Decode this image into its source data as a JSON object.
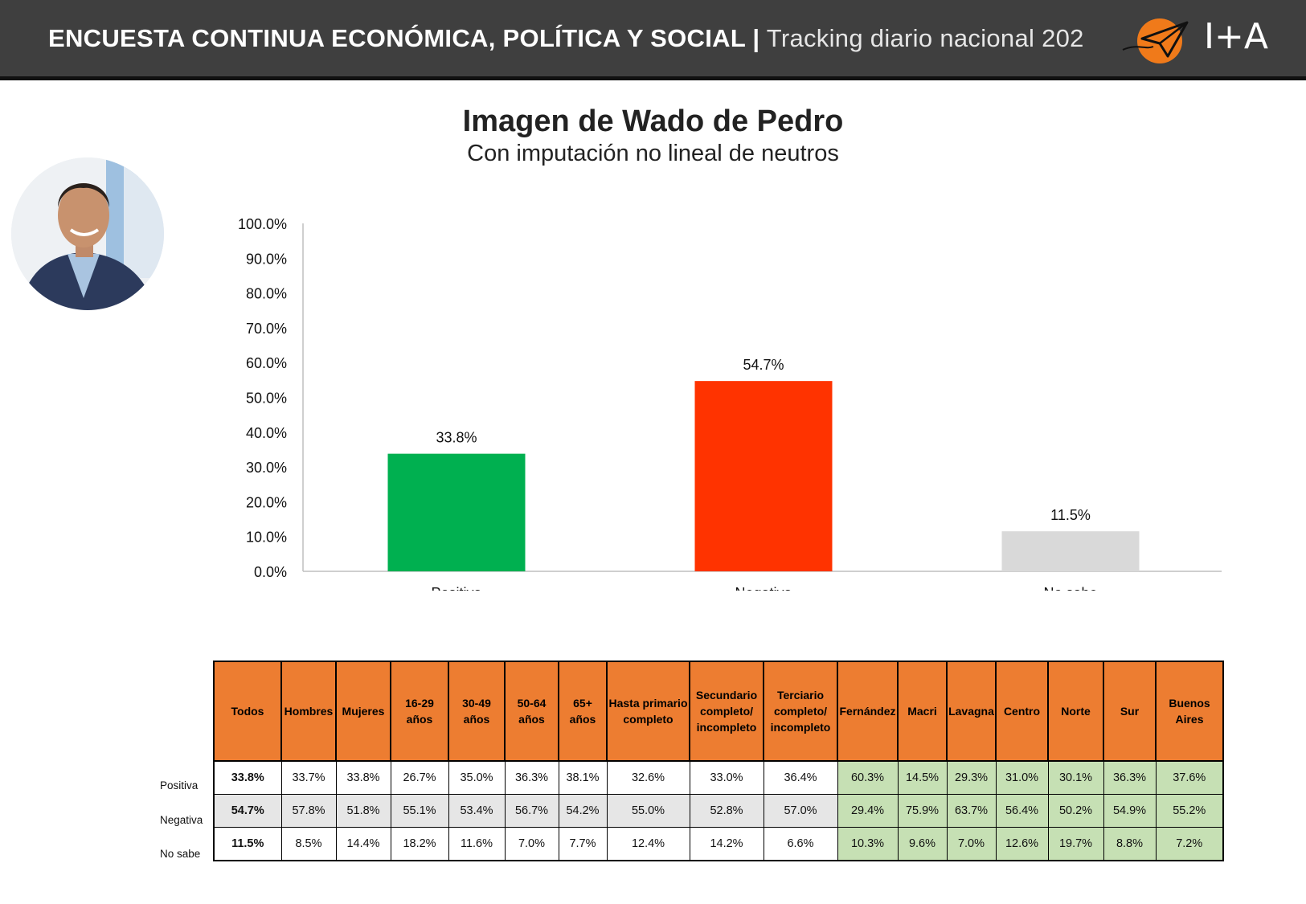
{
  "header": {
    "title_bold": "ENCUESTA CONTINUA ECONÓMICA, POLÍTICA Y SOCIAL |",
    "title_light": "Tracking diario nacional 202",
    "brand": "I+A",
    "logo_icon": "paper-plane-sun-logo"
  },
  "colors": {
    "header_bg": "#3f3f3f",
    "positiva": "#00b050",
    "negativa": "#ff3300",
    "no_sabe": "#d9d9d9",
    "table_header": "#ed7d31",
    "table_green": "#c6e0b4",
    "table_gray": "#e6e6e6"
  },
  "chart_data": {
    "type": "bar",
    "title": "Imagen de Wado de Pedro",
    "subtitle": "Con imputación no lineal de neutros",
    "categories": [
      "Positiva",
      "Negativa",
      "No sabe"
    ],
    "values": [
      33.8,
      54.7,
      11.5
    ],
    "value_labels": [
      "33.8%",
      "54.7%",
      "11.5%"
    ],
    "ylim": [
      0,
      100
    ],
    "yticks": [
      "0.0%",
      "10.0%",
      "20.0%",
      "30.0%",
      "40.0%",
      "50.0%",
      "60.0%",
      "70.0%",
      "80.0%",
      "90.0%",
      "100.0%"
    ],
    "grid": false,
    "legend": "none"
  },
  "table": {
    "headers": [
      "Todos",
      "Hombres",
      "Mujeres",
      "16-29 años",
      "30-49 años",
      "50-64 años",
      "65+ años",
      "Hasta primario completo",
      "Secundario completo/ incompleto",
      "Terciario completo/ incompleto",
      "Fernández",
      "Macri",
      "Lavagna",
      "Centro",
      "Norte",
      "Sur",
      "Buenos Aires"
    ],
    "rows": [
      {
        "label": "Positiva",
        "values": [
          "33.8%",
          "33.7%",
          "33.8%",
          "26.7%",
          "35.0%",
          "36.3%",
          "38.1%",
          "32.6%",
          "33.0%",
          "36.4%",
          "60.3%",
          "14.5%",
          "29.3%",
          "31.0%",
          "30.1%",
          "36.3%",
          "37.6%"
        ]
      },
      {
        "label": "Negativa",
        "values": [
          "54.7%",
          "57.8%",
          "51.8%",
          "55.1%",
          "53.4%",
          "56.7%",
          "54.2%",
          "55.0%",
          "52.8%",
          "57.0%",
          "29.4%",
          "75.9%",
          "63.7%",
          "56.4%",
          "50.2%",
          "54.9%",
          "55.2%"
        ]
      },
      {
        "label": "No sabe",
        "values": [
          "11.5%",
          "8.5%",
          "14.4%",
          "18.2%",
          "11.6%",
          "7.0%",
          "7.7%",
          "12.4%",
          "14.2%",
          "6.6%",
          "10.3%",
          "9.6%",
          "7.0%",
          "12.6%",
          "19.7%",
          "8.8%",
          "7.2%"
        ]
      }
    ]
  }
}
